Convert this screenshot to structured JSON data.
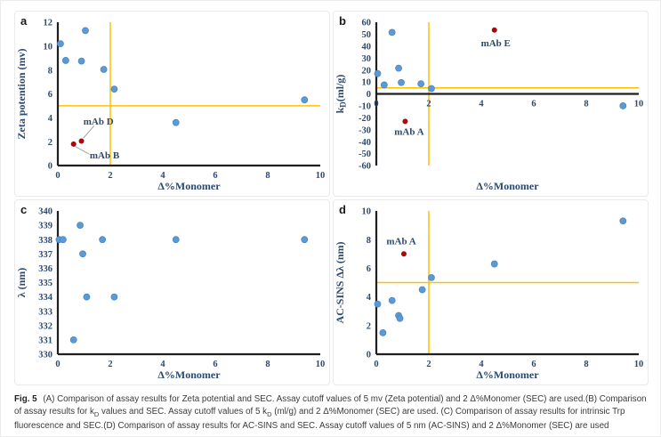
{
  "figure_letters": {
    "a": "a",
    "b": "b",
    "c": "c",
    "d": "d"
  },
  "colors": {
    "marker_blue": "#5B9BD5",
    "marker_blue_stroke": "#4A86C4",
    "marker_red": "#C00000",
    "marker_red_stroke": "#7E1A1A",
    "cutoff_orange": "#FFC000",
    "axis_black": "#1f1f1f",
    "tick_text_navy": "#2B4A70",
    "leader_gray": "#9a9a9a"
  },
  "chart_data": [
    {
      "panel": "a",
      "type": "scatter",
      "xlabel": "Δ%Monomer",
      "ylabel": "Zeta potention (mv)",
      "xlim": [
        0,
        10
      ],
      "xstep": 2,
      "ylim": [
        0,
        12
      ],
      "ystep": 2,
      "cutoff_x": 2,
      "cutoff_y": 5,
      "series": [
        {
          "name": "mAb panel",
          "color": "#5B9BD5",
          "stroke": "#4A86C4",
          "r": 3.5,
          "points": [
            [
              0.1,
              10.2
            ],
            [
              0.3,
              8.8
            ],
            [
              0.9,
              8.75
            ],
            [
              1.05,
              11.3
            ],
            [
              1.75,
              8.05
            ],
            [
              2.15,
              6.4
            ],
            [
              4.5,
              3.6
            ],
            [
              9.4,
              5.5
            ]
          ]
        },
        {
          "name": "flagged mAbs",
          "color": "#C00000",
          "stroke": "#7E1A1A",
          "r": 2.6,
          "points": [
            [
              0.6,
              1.8
            ],
            [
              0.9,
              2.05
            ]
          ]
        }
      ],
      "annotations": [
        {
          "text": "mAb D",
          "x": 1.55,
          "y": 3.7,
          "leader": [
            1.38,
            3.32,
            0.97,
            2.3
          ]
        },
        {
          "text": "mAb B",
          "x": 1.78,
          "y": 0.85,
          "leader": [
            1.2,
            0.95,
            0.66,
            1.6
          ]
        }
      ]
    },
    {
      "panel": "b",
      "type": "scatter",
      "xlabel": "Δ%Monomer",
      "ylabel_segments": [
        {
          "t": "k"
        },
        {
          "t": "D",
          "sub": true
        },
        {
          "t": "(ml/g)"
        }
      ],
      "xlim": [
        0,
        10
      ],
      "xstep": 2,
      "ylim": [
        -60,
        60
      ],
      "ystep": 10,
      "cutoff_x": 2,
      "cutoff_y": 5,
      "series": [
        {
          "name": "mAb panel",
          "color": "#5B9BD5",
          "stroke": "#4A86C4",
          "r": 3.5,
          "points": [
            [
              0.05,
              17
            ],
            [
              0.3,
              7.5
            ],
            [
              0.6,
              51.5
            ],
            [
              0.85,
              21.5
            ],
            [
              0.95,
              9.5
            ],
            [
              1.7,
              8.5
            ],
            [
              2.1,
              4.5
            ],
            [
              9.4,
              -10
            ]
          ]
        },
        {
          "name": "flagged mAbs",
          "color": "#C00000",
          "stroke": "#7E1A1A",
          "r": 2.6,
          "points": [
            [
              1.1,
              -23
            ],
            [
              4.5,
              53.5
            ]
          ]
        }
      ],
      "annotations": [
        {
          "text": "mAb E",
          "x": 4.55,
          "y": 42.5,
          "leader": null
        },
        {
          "text": "mAb A",
          "x": 1.25,
          "y": -31.5,
          "leader": null
        }
      ]
    },
    {
      "panel": "c",
      "type": "scatter",
      "xlabel": "Δ%Monomer",
      "ylabel": "λ (nm)",
      "xlim": [
        0,
        10
      ],
      "xstep": 2,
      "ylim": [
        330,
        340
      ],
      "ystep": 1,
      "cutoff_x": null,
      "cutoff_y": null,
      "series": [
        {
          "name": "mAb panel",
          "color": "#5B9BD5",
          "stroke": "#4A86C4",
          "r": 3.5,
          "points": [
            [
              0.05,
              338
            ],
            [
              0.2,
              338
            ],
            [
              0.6,
              331
            ],
            [
              0.85,
              339
            ],
            [
              0.95,
              337
            ],
            [
              1.1,
              334
            ],
            [
              1.7,
              338
            ],
            [
              2.15,
              334
            ],
            [
              4.5,
              338
            ],
            [
              9.4,
              338
            ]
          ]
        }
      ],
      "annotations": []
    },
    {
      "panel": "d",
      "type": "scatter",
      "xlabel": "Δ%Monomer",
      "ylabel": "AC-SINS Δλ (nm)",
      "xlim": [
        0,
        10
      ],
      "xstep": 2,
      "ylim": [
        0,
        10
      ],
      "ystep": 2,
      "cutoff_x": 2,
      "cutoff_y": 5,
      "series": [
        {
          "name": "mAb panel",
          "color": "#5B9BD5",
          "stroke": "#4A86C4",
          "r": 3.5,
          "points": [
            [
              0.05,
              3.5
            ],
            [
              0.25,
              1.5
            ],
            [
              0.6,
              3.75
            ],
            [
              0.85,
              2.7
            ],
            [
              0.9,
              2.5
            ],
            [
              1.75,
              4.5
            ],
            [
              2.1,
              5.35
            ],
            [
              4.5,
              6.3
            ],
            [
              9.4,
              9.3
            ]
          ]
        },
        {
          "name": "flagged mAbs",
          "color": "#C00000",
          "stroke": "#7E1A1A",
          "r": 2.6,
          "points": [
            [
              1.05,
              7.0
            ]
          ]
        }
      ],
      "annotations": [
        {
          "text": "mAb A",
          "x": 0.95,
          "y": 7.9,
          "leader": null
        }
      ]
    }
  ],
  "caption": {
    "label": "Fig. 5",
    "segments": [
      {
        "t": " (A) Comparison of assay results for Zeta potential and SEC. Assay cutoff values of 5 mv (Zeta potential) and 2 Δ%Monomer (SEC) are used.(B) Comparison of assay results for k"
      },
      {
        "t": "D",
        "sub": true
      },
      {
        "t": " values and SEC. Assay cutoff values of 5 k"
      },
      {
        "t": "D",
        "sub": true
      },
      {
        "t": " (ml/g) and 2 Δ%Monomer (SEC) are used. (C) Comparison of assay results for intrinsic Trp fluorescence and SEC.(D) Comparison of assay results for AC-SINS and SEC. Assay cutoff values of 5 nm (AC-SINS) and 2 Δ%Monomer (SEC) are used"
      }
    ]
  }
}
